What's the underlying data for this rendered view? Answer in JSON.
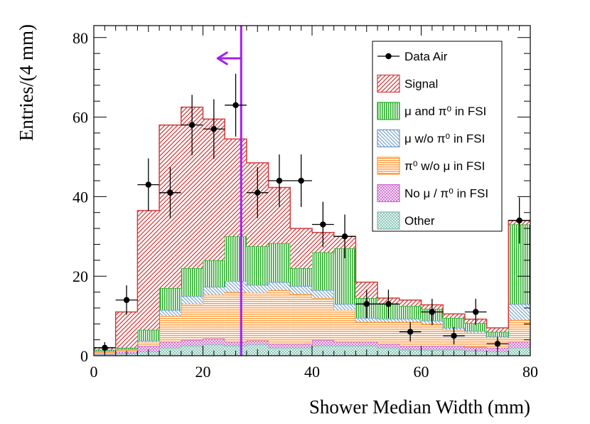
{
  "chart_data": {
    "type": "histogram_stacked",
    "xlabel": "Shower Median Width (mm)",
    "ylabel": "Entries/(4 mm)",
    "xlim": [
      0,
      80
    ],
    "ylim": [
      0,
      83
    ],
    "x_ticks": [
      0,
      20,
      40,
      60,
      80
    ],
    "y_ticks": [
      0,
      20,
      40,
      60,
      80
    ],
    "bin_edges": [
      0,
      4,
      8,
      12,
      16,
      20,
      24,
      28,
      32,
      36,
      40,
      44,
      48,
      52,
      56,
      60,
      64,
      68,
      72,
      76,
      80
    ],
    "series": [
      {
        "name": "Other",
        "key": "other",
        "color": "#7fbfb0",
        "pattern": "dots",
        "values": [
          0.3,
          0.5,
          1.0,
          2.0,
          2.5,
          2.8,
          2.5,
          2.8,
          2.0,
          2.0,
          2.5,
          2.5,
          2.5,
          2.0,
          1.5,
          1.5,
          1.5,
          1.2,
          1.0,
          2.0
        ]
      },
      {
        "name": "No μ / π⁰ in FSI",
        "key": "nomu",
        "color": "#cc66cc",
        "pattern": "cross",
        "values": [
          0.2,
          0.5,
          1.5,
          1.5,
          1.5,
          1.5,
          1.0,
          1.0,
          1.0,
          1.0,
          1.5,
          1.0,
          1.0,
          1.0,
          1.0,
          1.0,
          1.0,
          1.0,
          1.0,
          1.5
        ]
      },
      {
        "name": "π⁰ w/o μ in FSI",
        "key": "pi0",
        "color": "#ff9a3c",
        "pattern": "horizontal",
        "values": [
          0.5,
          0.5,
          1.0,
          6.5,
          9.0,
          11.0,
          12.5,
          12.0,
          13.5,
          12.5,
          10.5,
          8.0,
          5.0,
          5.5,
          6.0,
          5.5,
          4.0,
          3.5,
          2.5,
          5.5
        ]
      },
      {
        "name": "μ w/o π⁰ in FSI",
        "key": "mu",
        "color": "#6699cc",
        "pattern": "diag-up",
        "values": [
          0.2,
          0.2,
          0.3,
          1.5,
          2.0,
          2.0,
          2.8,
          2.0,
          2.0,
          2.0,
          2.0,
          1.5,
          1.0,
          0.8,
          0.8,
          0.8,
          0.5,
          0.5,
          0.3,
          4.0
        ]
      },
      {
        "name": "μ and π⁰ in FSI",
        "key": "mupi",
        "color": "#22aa22",
        "pattern": "vertical",
        "values": [
          0.3,
          0.3,
          2.7,
          5.5,
          7.0,
          6.7,
          11.2,
          9.7,
          9.8,
          4.5,
          9.5,
          14.0,
          5.0,
          3.7,
          3.2,
          3.0,
          2.5,
          2.0,
          1.2,
          20.0
        ]
      },
      {
        "name": "Signal",
        "key": "signal",
        "color": "#d23c3c",
        "pattern": "diag-down",
        "values": [
          0.5,
          9.0,
          30.0,
          41.0,
          40.5,
          35.5,
          24.5,
          21.0,
          14.0,
          10.0,
          5.0,
          3.0,
          4.0,
          1.5,
          1.5,
          1.0,
          1.0,
          1.0,
          1.0,
          1.0
        ]
      }
    ],
    "data_points": {
      "name": "Data Air",
      "x": [
        2,
        6,
        10,
        14,
        18,
        22,
        26,
        30,
        34,
        38,
        42,
        46,
        50,
        54,
        58,
        62,
        66,
        70,
        74,
        78
      ],
      "y": [
        2,
        14,
        43,
        41,
        58,
        57,
        63,
        41,
        44,
        44,
        33,
        30,
        13,
        13,
        6,
        11,
        5,
        11,
        3,
        34
      ],
      "yerr": [
        1.4,
        3.7,
        6.6,
        6.4,
        7.6,
        7.5,
        7.9,
        6.4,
        6.6,
        6.6,
        5.7,
        5.5,
        3.6,
        3.6,
        2.4,
        3.3,
        2.2,
        3.3,
        1.7,
        5.8
      ]
    },
    "cut": {
      "x": 27,
      "direction": "left",
      "color": "#a020f0"
    },
    "legend": {
      "position": "top-right",
      "entries": [
        "Data Air",
        "Signal",
        "μ and π⁰ in FSI",
        "μ w/o π⁰ in FSI",
        "π⁰ w/o μ in FSI",
        "No μ / π⁰ in FSI",
        "Other"
      ]
    }
  }
}
